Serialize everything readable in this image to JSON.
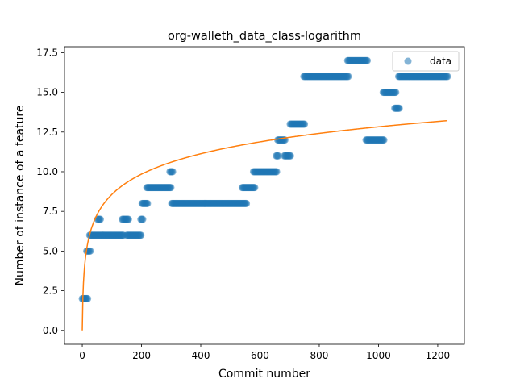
{
  "chart_data": {
    "type": "scatter",
    "title": "org-walleth_data_class-logarithm",
    "xlabel": "Commit number",
    "ylabel": "Number of instance of a feature",
    "xlim": [
      -60,
      1290
    ],
    "ylim": [
      -0.875,
      17.875
    ],
    "xticks": [
      0,
      200,
      400,
      600,
      800,
      1000,
      1200
    ],
    "yticks": [
      0.0,
      2.5,
      5.0,
      7.5,
      10.0,
      12.5,
      15.0,
      17.5
    ],
    "xtick_labels": [
      "0",
      "200",
      "400",
      "600",
      "800",
      "1000",
      "1200"
    ],
    "ytick_labels": [
      "0.0",
      "2.5",
      "5.0",
      "7.5",
      "10.0",
      "12.5",
      "15.0",
      "17.5"
    ],
    "legend": {
      "position": "top-right",
      "entries": [
        "data"
      ]
    },
    "grid": false,
    "series": [
      {
        "name": "data",
        "kind": "scatter",
        "color": "#1f77b4",
        "segments": [
          {
            "x0": 0,
            "x1": 18,
            "y": 2
          },
          {
            "x0": 15,
            "x1": 28,
            "y": 5
          },
          {
            "x0": 25,
            "x1": 140,
            "y": 6
          },
          {
            "x0": 52,
            "x1": 62,
            "y": 7
          },
          {
            "x0": 135,
            "x1": 158,
            "y": 7
          },
          {
            "x0": 150,
            "x1": 200,
            "y": 6
          },
          {
            "x0": 198,
            "x1": 205,
            "y": 7
          },
          {
            "x0": 202,
            "x1": 222,
            "y": 8
          },
          {
            "x0": 218,
            "x1": 300,
            "y": 9
          },
          {
            "x0": 296,
            "x1": 305,
            "y": 10
          },
          {
            "x0": 302,
            "x1": 555,
            "y": 8
          },
          {
            "x0": 540,
            "x1": 582,
            "y": 9
          },
          {
            "x0": 578,
            "x1": 658,
            "y": 10
          },
          {
            "x0": 655,
            "x1": 662,
            "y": 11
          },
          {
            "x0": 660,
            "x1": 685,
            "y": 12
          },
          {
            "x0": 682,
            "x1": 705,
            "y": 11
          },
          {
            "x0": 702,
            "x1": 752,
            "y": 13
          },
          {
            "x0": 748,
            "x1": 900,
            "y": 16
          },
          {
            "x0": 896,
            "x1": 962,
            "y": 17
          },
          {
            "x0": 958,
            "x1": 1020,
            "y": 12
          },
          {
            "x0": 1016,
            "x1": 1058,
            "y": 15
          },
          {
            "x0": 1055,
            "x1": 1072,
            "y": 14
          },
          {
            "x0": 1068,
            "x1": 1235,
            "y": 16
          }
        ]
      },
      {
        "kind": "line",
        "color": "#ff7f0e",
        "function": "logarithmic",
        "a": 1.857,
        "x_range": [
          0,
          1230
        ]
      }
    ]
  }
}
